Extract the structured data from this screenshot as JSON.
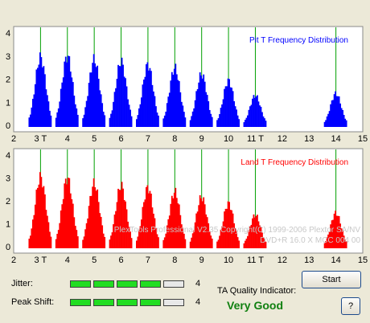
{
  "chart_data": [
    {
      "type": "bar",
      "title": "Pit T Frequency Distribution",
      "color": "#0000ff",
      "xlim": [
        2,
        15
      ],
      "ylim": [
        0,
        4
      ],
      "yticks": [
        0,
        1,
        2,
        3,
        4
      ],
      "xticks": [
        "2",
        "3 T",
        "4",
        "5",
        "6",
        "7",
        "8",
        "9",
        "10",
        "11 T",
        "12",
        "13",
        "14",
        "15"
      ],
      "grid": false,
      "marker_lines": [
        3,
        4,
        5,
        6,
        7,
        8,
        9,
        10,
        11,
        14
      ],
      "peaks": [
        {
          "x": 3,
          "y": 3.2
        },
        {
          "x": 4,
          "y": 3.25
        },
        {
          "x": 5,
          "y": 3.1
        },
        {
          "x": 6,
          "y": 3.0
        },
        {
          "x": 7,
          "y": 2.85
        },
        {
          "x": 8,
          "y": 2.7
        },
        {
          "x": 9,
          "y": 2.4
        },
        {
          "x": 10,
          "y": 2.1
        },
        {
          "x": 11,
          "y": 1.4
        },
        {
          "x": 14,
          "y": 1.5
        }
      ]
    },
    {
      "type": "bar",
      "title": "Land T Frequency Distribution",
      "color": "#ff0000",
      "xlim": [
        2,
        15
      ],
      "ylim": [
        0,
        4
      ],
      "yticks": [
        0,
        1,
        2,
        3,
        4
      ],
      "xticks": [
        "2",
        "3 T",
        "4",
        "5",
        "6",
        "7",
        "8",
        "9",
        "10",
        "11 T",
        "12",
        "13",
        "14",
        "15"
      ],
      "grid": false,
      "marker_lines": [
        3,
        4,
        5,
        6,
        7,
        8,
        9,
        10,
        11,
        14
      ],
      "peaks": [
        {
          "x": 3,
          "y": 3.3
        },
        {
          "x": 4,
          "y": 3.25
        },
        {
          "x": 5,
          "y": 3.0
        },
        {
          "x": 6,
          "y": 2.9
        },
        {
          "x": 7,
          "y": 2.8
        },
        {
          "x": 8,
          "y": 2.6
        },
        {
          "x": 9,
          "y": 2.35
        },
        {
          "x": 10,
          "y": 2.05
        },
        {
          "x": 11,
          "y": 1.5
        },
        {
          "x": 14,
          "y": 1.6
        }
      ]
    }
  ],
  "watermark": {
    "line1": "PlexTools Professional V2.35 Copyright(C) 1999-2006 Plextor SA/NV",
    "line2": "DVD+R   16.0 X   MCC 004 00"
  },
  "jitter": {
    "label": "Jitter:",
    "value": "4",
    "total_segments": 5,
    "lit_segments": 4
  },
  "peak_shift": {
    "label": "Peak Shift:",
    "value": "4",
    "total_segments": 5,
    "lit_segments": 4
  },
  "ta_quality": {
    "label": "TA Quality Indicator:",
    "value": "Very Good"
  },
  "buttons": {
    "start": "Start",
    "help": "?"
  },
  "colors": {
    "marker_line": "#00a000",
    "background": "#ffffff",
    "led_on": "#22dd22"
  }
}
